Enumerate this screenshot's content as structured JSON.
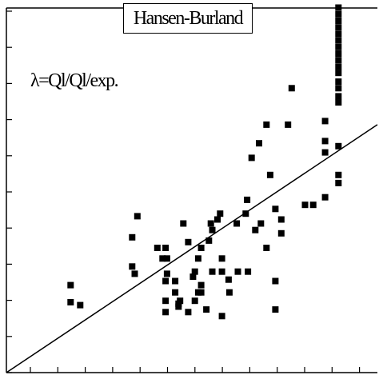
{
  "chart_data": {
    "type": "scatter",
    "title": "Hansen-Burland",
    "annotation": "λ=Ql/Ql/exp.",
    "xlabel": "",
    "ylabel": "",
    "xlim": [
      0,
      10
    ],
    "ylim": [
      0,
      10
    ],
    "grid": false,
    "legend": "none",
    "points": [
      [
        1.73,
        2.4
      ],
      [
        1.73,
        1.93
      ],
      [
        1.99,
        1.85
      ],
      [
        3.39,
        3.71
      ],
      [
        3.46,
        2.71
      ],
      [
        3.39,
        2.91
      ],
      [
        3.53,
        4.29
      ],
      [
        4.33,
        3.13
      ],
      [
        4.33,
        2.71
      ],
      [
        4.21,
        3.13
      ],
      [
        4.29,
        2.51
      ],
      [
        4.55,
        2.2
      ],
      [
        4.64,
        1.89
      ],
      [
        4.68,
        1.97
      ],
      [
        4.29,
        1.97
      ],
      [
        4.29,
        1.66
      ],
      [
        4.07,
        3.42
      ],
      [
        4.29,
        3.42
      ],
      [
        4.55,
        2.51
      ],
      [
        4.64,
        1.81
      ],
      [
        4.77,
        4.09
      ],
      [
        4.9,
        3.58
      ],
      [
        5.03,
        2.63
      ],
      [
        5.08,
        2.77
      ],
      [
        5.17,
        3.13
      ],
      [
        5.25,
        2.4
      ],
      [
        5.39,
        1.73
      ],
      [
        5.17,
        2.2
      ],
      [
        4.9,
        1.66
      ],
      [
        5.08,
        1.97
      ],
      [
        5.25,
        2.2
      ],
      [
        5.46,
        3.62
      ],
      [
        5.51,
        4.09
      ],
      [
        5.55,
        2.77
      ],
      [
        5.55,
        3.91
      ],
      [
        5.25,
        3.42
      ],
      [
        5.69,
        4.2
      ],
      [
        5.76,
        4.36
      ],
      [
        5.81,
        2.77
      ],
      [
        5.81,
        1.55
      ],
      [
        5.81,
        3.13
      ],
      [
        5.99,
        2.55
      ],
      [
        6.01,
        2.2
      ],
      [
        6.21,
        4.09
      ],
      [
        6.24,
        2.77
      ],
      [
        6.51,
        2.77
      ],
      [
        6.45,
        4.36
      ],
      [
        6.49,
        4.74
      ],
      [
        6.61,
        5.89
      ],
      [
        6.71,
        3.91
      ],
      [
        6.81,
        6.29
      ],
      [
        7.11,
        5.42
      ],
      [
        7.01,
        6.8
      ],
      [
        6.86,
        4.09
      ],
      [
        7.01,
        3.42
      ],
      [
        7.25,
        4.49
      ],
      [
        7.41,
        3.82
      ],
      [
        7.25,
        2.51
      ],
      [
        7.25,
        1.73
      ],
      [
        7.41,
        4.2
      ],
      [
        7.59,
        6.8
      ],
      [
        7.69,
        7.8
      ],
      [
        8.05,
        4.6
      ],
      [
        8.27,
        4.6
      ],
      [
        8.59,
        6.04
      ],
      [
        8.59,
        6.35
      ],
      [
        8.59,
        4.81
      ],
      [
        8.59,
        6.9
      ],
      [
        8.95,
        8.39
      ],
      [
        8.95,
        7.58
      ],
      [
        8.95,
        6.21
      ],
      [
        8.95,
        5.42
      ],
      [
        8.95,
        5.2
      ],
      [
        8.95,
        7.41
      ],
      [
        8.95,
        7.8
      ],
      [
        8.95,
        7.98
      ],
      [
        8.95,
        8.22
      ],
      [
        8.95,
        8.57
      ],
      [
        8.95,
        8.75
      ],
      [
        8.95,
        8.93
      ],
      [
        8.95,
        9.11
      ],
      [
        8.95,
        9.29
      ],
      [
        8.95,
        9.47
      ],
      [
        8.95,
        9.65
      ],
      [
        8.95,
        9.83
      ],
      [
        8.95,
        10.01
      ]
    ],
    "line": {
      "x": [
        0,
        10
      ],
      "y": [
        0,
        6.8
      ]
    }
  }
}
